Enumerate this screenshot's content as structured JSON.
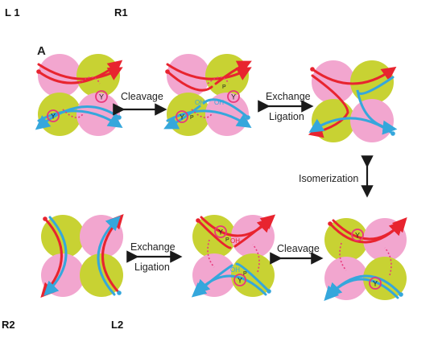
{
  "corner_labels": {
    "top_left": "L 1",
    "top_mid": "R1",
    "bottom_left": "R2",
    "bottom_mid": "L2"
  },
  "panel_letter": "A",
  "steps": {
    "cleavage_top": "Cleavage",
    "exchange_top": "Exchange",
    "ligation_top": "Ligation",
    "isomerization": "Isomerization",
    "exchange_bottom": "Exchange",
    "ligation_bottom": "Ligation",
    "cleavage_bottom": "Cleavage"
  },
  "residue_label": "Y",
  "phosphate_label": "P",
  "hydroxyl_label": "OH",
  "colors": {
    "pink": "#f2a6cf",
    "lime": "#c8d233",
    "red_strand": "#e8242f",
    "blue_strand": "#35a7dc",
    "ring": "#e8377a",
    "arrow": "#1a1a1a"
  }
}
